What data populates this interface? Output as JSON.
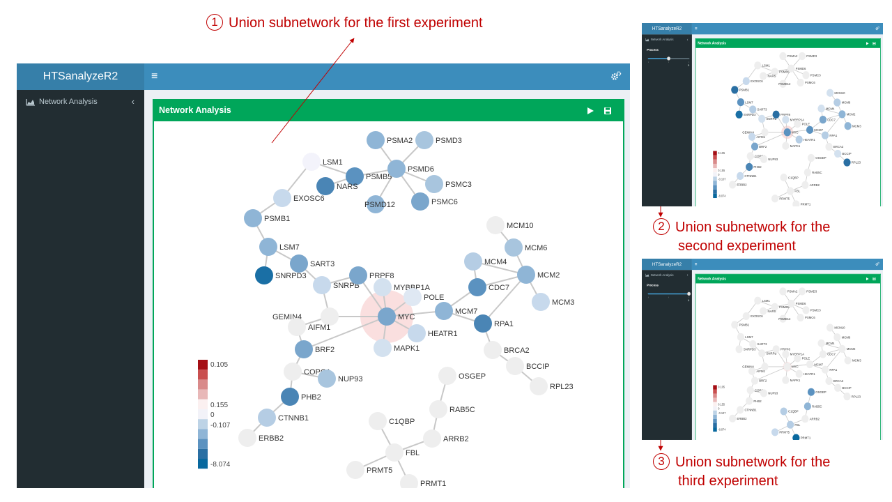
{
  "annotations": [
    {
      "number": "1",
      "lines": [
        "Union subnetwork for the first experiment"
      ]
    },
    {
      "number": "2",
      "lines": [
        "Union subnetwork for the",
        "second experiment"
      ]
    },
    {
      "number": "3",
      "lines": [
        "Union subnetwork for the",
        "third experiment"
      ]
    }
  ],
  "app": {
    "brand": "HTSanalyzeR2",
    "toggle_glyph": "≡",
    "sidebar": {
      "item_label": "Network Analysis",
      "item_icon": "area-chart-icon",
      "chevron_glyph": "‹",
      "process_label": "Process"
    },
    "box": {
      "title": "Network Analysis",
      "buttons": [
        "play-icon",
        "save-icon"
      ]
    }
  },
  "legend": {
    "labels": [
      "0.105",
      "0.155",
      "0",
      "-0.107",
      "-8.074"
    ],
    "colors": [
      "#a50f15",
      "#c94f4f",
      "#d98a8a",
      "#e8b8b8",
      "#fbf0f0",
      "#f2f2f8",
      "#bdd3e6",
      "#8fb5d6",
      "#5b92c0",
      "#2a6fa3",
      "#08689e"
    ]
  },
  "colors": {
    "navbar": "#3c8dbc",
    "brand_bg": "#367fa9",
    "sidebar": "#222d32",
    "box_header": "#00a65a",
    "callout": "#c00000",
    "gray_node": "#eeeeee"
  },
  "experiments": [
    {
      "name": "first",
      "slider_value": 0,
      "nodes": {
        "LSM1": "#f3f3fb",
        "PSMA2": "#8fb5d6",
        "PSMD3": "#a8c5de",
        "PSMB5": "#5b92c0",
        "PSMD6": "#8fb5d6",
        "NARS": "#4a85b5",
        "PSMC3": "#a8c5de",
        "PSMD12": "#8fb5d6",
        "PSMC6": "#7aa6cc",
        "EXOSC6": "#c7d9ec",
        "PSMB1": "#8fb5d6",
        "LSM7": "#8fb5d6",
        "SART3": "#7aa6cc",
        "SNRPD3": "#1a6fa5",
        "SNRPB": "#c7d9ec",
        "PRPF8": "#7aa6cc",
        "MYBBP1A": "#d3e1ef",
        "POLE": "#dfe8f3",
        "GEMIN4": "#eeeeee",
        "MYC": "#7aa6cc",
        "MCM7": "#8fb5d6",
        "HEATR1": "#c7d9ec",
        "MAPK1": "#d3e1ef",
        "AIFM1": "#eeeeee",
        "BRF2": "#7aa6cc",
        "COPG1": "#eeeeee",
        "NUP93": "#a8c5de",
        "PHB2": "#4a85b5",
        "CTNNB1": "#b5cde4",
        "ERBB2": "#eeeeee",
        "MCM10": "#eeeeee",
        "MCM6": "#a8c5de",
        "MCM4": "#b5cde4",
        "MCM2": "#8fb5d6",
        "CDC7": "#5b92c0",
        "MCM3": "#c7d9ec",
        "RPA1": "#4a85b5",
        "BRCA2": "#eeeeee",
        "BCCIP": "#eeeeee",
        "RPL23": "#eeeeee",
        "OSGEP": "#eeeeee",
        "RAB5C": "#eeeeee",
        "C1QBP": "#eeeeee",
        "ARRB2": "#eeeeee",
        "FBL": "#eeeeee",
        "PRMT5": "#eeeeee",
        "PRMT1": "#eeeeee"
      }
    },
    {
      "name": "second",
      "slider_value": 0.5,
      "nodes": {
        "LSM1": "#eeeeee",
        "PSMA2": "#eeeeee",
        "PSMD3": "#eeeeee",
        "PSMB5": "#eeeeee",
        "PSMD6": "#eeeeee",
        "NARS": "#eeeeee",
        "PSMC3": "#eeeeee",
        "PSMD12": "#eeeeee",
        "PSMC6": "#eeeeee",
        "EXOSC6": "#c7d9ec",
        "PSMB1": "#2a6fa3",
        "LSM7": "#5b92c0",
        "SART3": "#b5cde4",
        "SNRPD3": "#1a6fa5",
        "SNRPB": "#d3e1ef",
        "PRPF8": "#2a6fa3",
        "MYBBP1A": "#d3e1ef",
        "POLE": "#eeeeee",
        "GEMIN4": "#eeeeee",
        "MYC": "#5b92c0",
        "MCM7": "#5b92c0",
        "HEATR1": "#b5cde4",
        "MAPK1": "#eeeeee",
        "AIFM1": "#c7d9ec",
        "BRF2": "#7aa6cc",
        "COPG1": "#eeeeee",
        "NUP93": "#eeeeee",
        "PHB2": "#4a85b5",
        "CTNNB1": "#c7d9ec",
        "ERBB2": "#eeeeee",
        "MCM10": "#d3e1ef",
        "MCM6": "#b5cde4",
        "MCM4": "#d3e1ef",
        "MCM2": "#8fb5d6",
        "CDC7": "#7aa6cc",
        "MCM3": "#8fb5d6",
        "RPA1": "#b5cde4",
        "BRCA2": "#eeeeee",
        "BCCIP": "#d3e1ef",
        "RPL23": "#2a6fa3",
        "OSGEP": "#eeeeee",
        "RAB5C": "#eeeeee",
        "C1QBP": "#eeeeee",
        "ARRB2": "#eeeeee",
        "FBL": "#eeeeee",
        "PRMT5": "#eeeeee",
        "PRMT1": "#eeeeee"
      }
    },
    {
      "name": "third",
      "slider_value": 1,
      "nodes": {
        "LSM1": "#eeeeee",
        "PSMA2": "#eeeeee",
        "PSMD3": "#eeeeee",
        "PSMB5": "#eeeeee",
        "PSMD6": "#eeeeee",
        "NARS": "#eeeeee",
        "PSMC3": "#eeeeee",
        "PSMD12": "#eeeeee",
        "PSMC6": "#eeeeee",
        "EXOSC6": "#eeeeee",
        "PSMB1": "#eeeeee",
        "LSM7": "#eeeeee",
        "SART3": "#eeeeee",
        "SNRPD3": "#eeeeee",
        "SNRPB": "#eeeeee",
        "PRPF8": "#eeeeee",
        "MYBBP1A": "#eeeeee",
        "POLE": "#eeeeee",
        "GEMIN4": "#eeeeee",
        "MYC": "#eeeeee",
        "MCM7": "#eeeeee",
        "HEATR1": "#eeeeee",
        "MAPK1": "#eeeeee",
        "AIFM1": "#eeeeee",
        "BRF2": "#eeeeee",
        "COPG1": "#eeeeee",
        "NUP93": "#eeeeee",
        "PHB2": "#eeeeee",
        "CTNNB1": "#eeeeee",
        "ERBB2": "#eeeeee",
        "MCM10": "#eeeeee",
        "MCM6": "#eeeeee",
        "MCM4": "#eeeeee",
        "MCM2": "#eeeeee",
        "CDC7": "#eeeeee",
        "MCM3": "#eeeeee",
        "RPA1": "#eeeeee",
        "BRCA2": "#eeeeee",
        "BCCIP": "#eeeeee",
        "RPL23": "#eeeeee",
        "OSGEP": "#5b92c0",
        "RAB5C": "#8fb5d6",
        "C1QBP": "#b5cde4",
        "ARRB2": "#eeeeee",
        "FBL": "#b5cde4",
        "PRMT5": "#c7d9ec",
        "PRMT1": "#08689e"
      }
    }
  ]
}
